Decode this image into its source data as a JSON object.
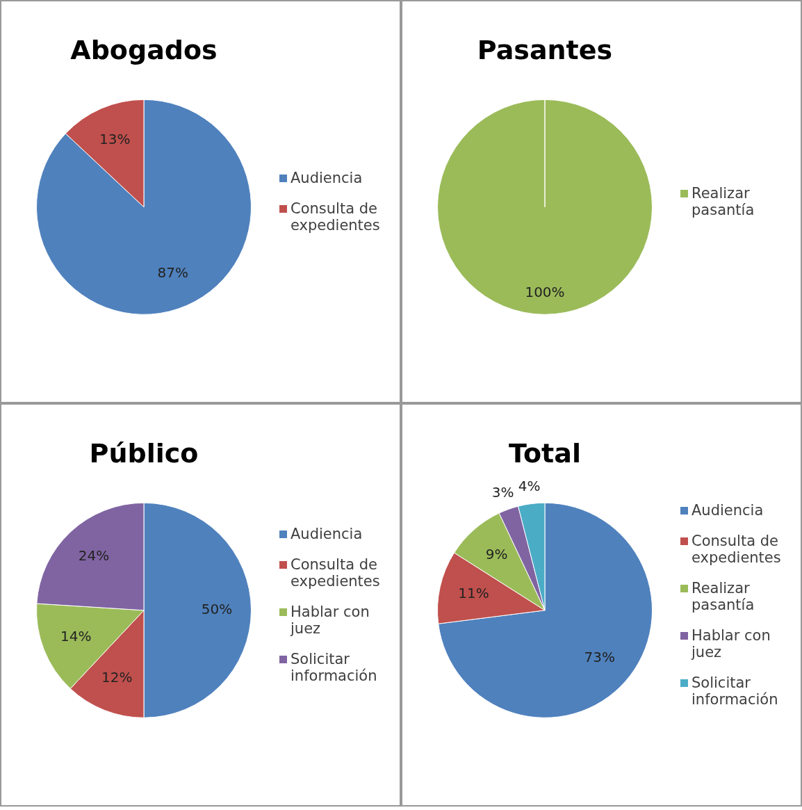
{
  "chart_data": [
    {
      "type": "pie",
      "title": "Abogados",
      "categories": [
        "Audiencia",
        "Consulta de expedientes"
      ],
      "values": [
        87,
        13
      ],
      "value_labels": [
        "87%",
        "13%"
      ],
      "colors": [
        "#4f81bd",
        "#c0504d"
      ],
      "legend": "right"
    },
    {
      "type": "pie",
      "title": "Pasantes",
      "categories": [
        "Realizar pasantía"
      ],
      "values": [
        100
      ],
      "value_labels": [
        "100%"
      ],
      "colors": [
        "#9bbb59"
      ],
      "legend": "right"
    },
    {
      "type": "pie",
      "title": "Público",
      "categories": [
        "Audiencia",
        "Consulta de expedientes",
        "Hablar con juez",
        "Solicitar información"
      ],
      "values": [
        50,
        12,
        14,
        24
      ],
      "value_labels": [
        "50%",
        "12%",
        "14%",
        "24%"
      ],
      "colors": [
        "#4f81bd",
        "#c0504d",
        "#9bbb59",
        "#8064a2"
      ],
      "legend": "right"
    },
    {
      "type": "pie",
      "title": "Total",
      "categories": [
        "Audiencia",
        "Consulta de expedientes",
        "Realizar pasantía",
        "Hablar con juez",
        "Solicitar información"
      ],
      "values": [
        73,
        11,
        9,
        3,
        4
      ],
      "value_labels": [
        "73%",
        "11%",
        "9%",
        "3%",
        "4%"
      ],
      "colors": [
        "#4f81bd",
        "#c0504d",
        "#9bbb59",
        "#8064a2",
        "#4bacc6"
      ],
      "legend": "right"
    }
  ]
}
